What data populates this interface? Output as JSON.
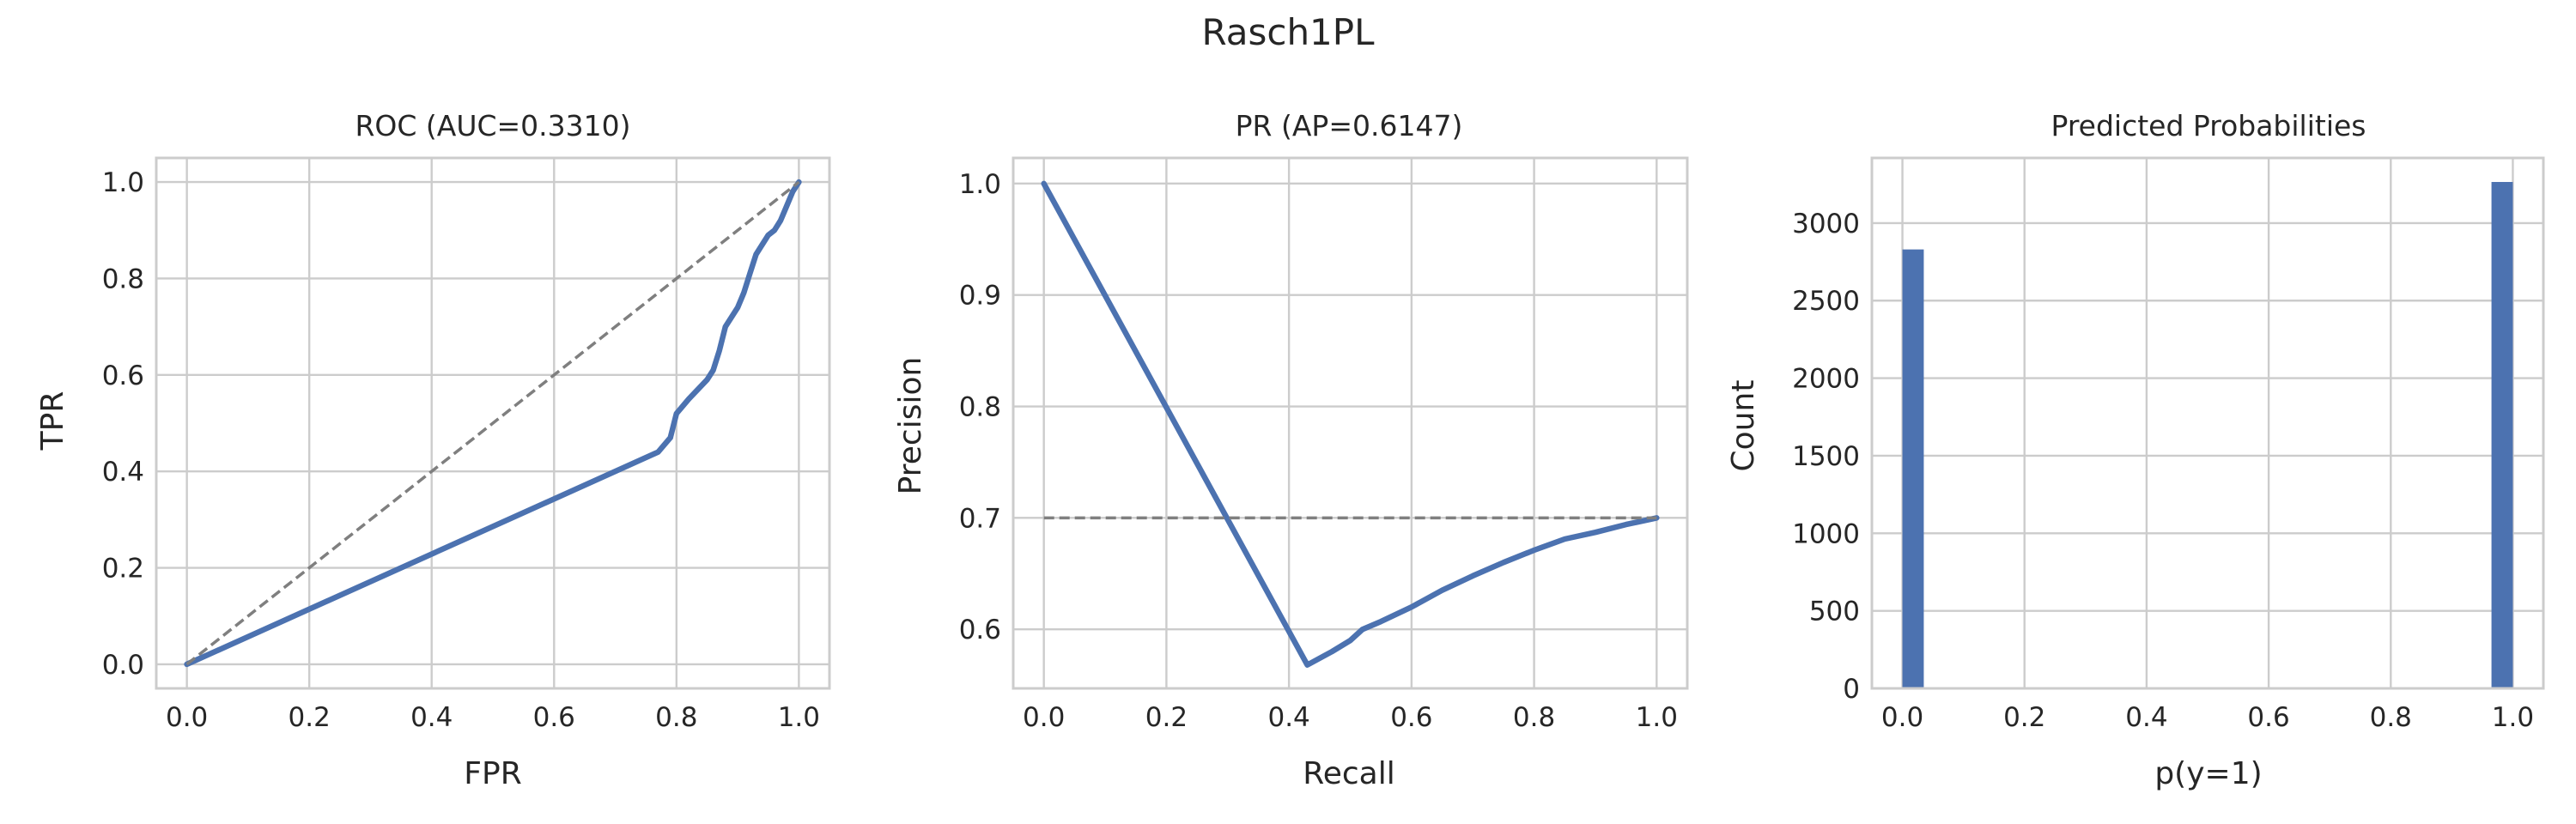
{
  "figure_title": "Rasch1PL",
  "colors": {
    "series": "#4c72b0",
    "reference": "#7f7f7f",
    "grid": "#cccccc",
    "text": "#262626"
  },
  "chart_data": [
    {
      "id": "roc",
      "type": "line",
      "title": "ROC (AUC=0.3310)",
      "xlabel": "FPR",
      "ylabel": "TPR",
      "xlim": [
        -0.05,
        1.05
      ],
      "ylim": [
        -0.05,
        1.05
      ],
      "xticks": [
        0.0,
        0.2,
        0.4,
        0.6,
        0.8,
        1.0
      ],
      "yticks": [
        0.0,
        0.2,
        0.4,
        0.6,
        0.8,
        1.0
      ],
      "xtick_labels": [
        "0.0",
        "0.2",
        "0.4",
        "0.6",
        "0.8",
        "1.0"
      ],
      "ytick_labels": [
        "0.0",
        "0.2",
        "0.4",
        "0.6",
        "0.8",
        "1.0"
      ],
      "grid": true,
      "series": [
        {
          "style": "solid",
          "x": [
            0.0,
            0.77,
            0.79,
            0.8,
            0.82,
            0.85,
            0.86,
            0.87,
            0.88,
            0.89,
            0.9,
            0.91,
            0.92,
            0.93,
            0.94,
            0.95,
            0.96,
            0.97,
            0.98,
            0.99,
            1.0
          ],
          "y": [
            0.0,
            0.44,
            0.47,
            0.52,
            0.55,
            0.59,
            0.61,
            0.65,
            0.7,
            0.72,
            0.74,
            0.77,
            0.81,
            0.85,
            0.87,
            0.89,
            0.9,
            0.92,
            0.95,
            0.98,
            1.0
          ]
        },
        {
          "style": "dashed",
          "x": [
            0.0,
            1.0
          ],
          "y": [
            0.0,
            1.0
          ]
        }
      ]
    },
    {
      "id": "pr",
      "type": "line",
      "title": "PR (AP=0.6147)",
      "xlabel": "Recall",
      "ylabel": "Precision",
      "xlim": [
        -0.05,
        1.05
      ],
      "ylim": [
        0.547,
        1.023
      ],
      "xticks": [
        0.0,
        0.2,
        0.4,
        0.6,
        0.8,
        1.0
      ],
      "yticks": [
        0.6,
        0.7,
        0.8,
        0.9,
        1.0
      ],
      "xtick_labels": [
        "0.0",
        "0.2",
        "0.4",
        "0.6",
        "0.8",
        "1.0"
      ],
      "ytick_labels": [
        "0.6",
        "0.7",
        "0.8",
        "0.9",
        "1.0"
      ],
      "grid": true,
      "series": [
        {
          "style": "solid",
          "x": [
            0.0,
            0.43,
            0.47,
            0.5,
            0.52,
            0.55,
            0.6,
            0.65,
            0.7,
            0.75,
            0.8,
            0.85,
            0.9,
            0.95,
            1.0
          ],
          "y": [
            1.0,
            0.568,
            0.58,
            0.59,
            0.6,
            0.607,
            0.62,
            0.635,
            0.648,
            0.66,
            0.671,
            0.681,
            0.687,
            0.694,
            0.7
          ]
        },
        {
          "style": "dashed",
          "x": [
            0.0,
            1.0
          ],
          "y": [
            0.7,
            0.7
          ]
        }
      ]
    },
    {
      "id": "hist",
      "type": "bar",
      "title": "Predicted Probabilities",
      "xlabel": "p(y=1)",
      "ylabel": "Count",
      "xlim": [
        -0.05,
        1.05
      ],
      "ylim": [
        0,
        3420
      ],
      "xticks": [
        0.0,
        0.2,
        0.4,
        0.6,
        0.8,
        1.0
      ],
      "yticks": [
        0,
        500,
        1000,
        1500,
        2000,
        2500,
        3000
      ],
      "xtick_labels": [
        "0.0",
        "0.2",
        "0.4",
        "0.6",
        "0.8",
        "1.0"
      ],
      "ytick_labels": [
        "0",
        "500",
        "1000",
        "1500",
        "2000",
        "2500",
        "3000"
      ],
      "grid": true,
      "bins": [
        {
          "x0": 0.0,
          "x1": 0.035,
          "count": 2830
        },
        {
          "x0": 0.965,
          "x1": 1.0,
          "count": 3265
        }
      ]
    }
  ]
}
